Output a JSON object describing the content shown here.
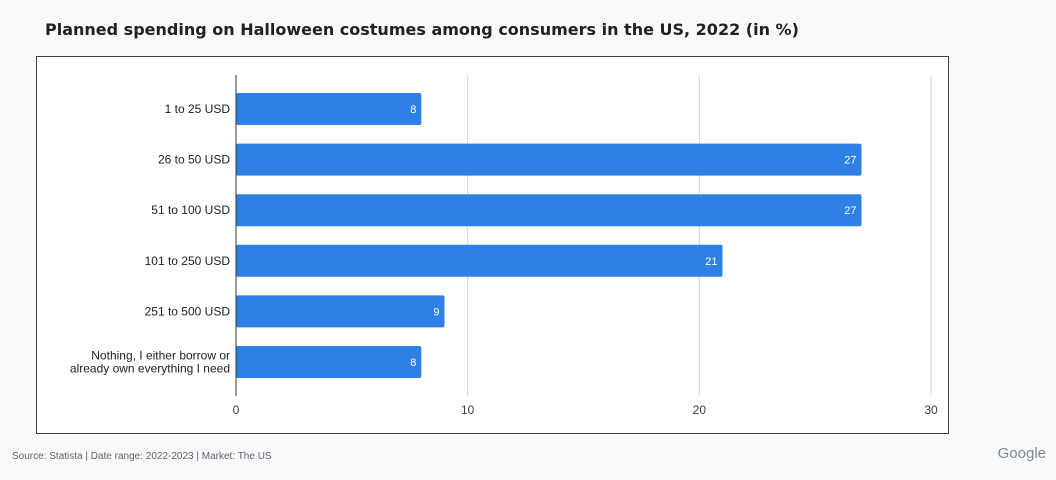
{
  "header": {
    "title": "Planned spending on Halloween costumes among consumers in the US, 2022 (in %)"
  },
  "footer": {
    "source": "Source: Statista | Date range: 2022-2023 | Market: The US",
    "brand": "Google"
  },
  "chart_data": {
    "type": "bar",
    "orientation": "horizontal",
    "title": "Planned spending on Halloween costumes among consumers in the US, 2022 (in %)",
    "xlabel": "",
    "ylabel": "",
    "categories": [
      "1 to 25 USD",
      "26 to 50 USD",
      "51 to 100 USD",
      "101 to 250 USD",
      "251 to 500 USD",
      "Nothing, I either borrow or already own everything I need"
    ],
    "category_lines": [
      [
        "1 to 25 USD"
      ],
      [
        "26 to 50 USD"
      ],
      [
        "51 to 100 USD"
      ],
      [
        "101 to 250 USD"
      ],
      [
        "251 to 500 USD"
      ],
      [
        "Nothing, I either borrow or",
        "already own everything I need"
      ]
    ],
    "values": [
      8,
      27,
      27,
      21,
      9,
      8
    ],
    "xlim": [
      0,
      30
    ],
    "xticks": [
      0,
      10,
      20,
      30
    ],
    "grid": true,
    "bar_color": "#2f80e4",
    "value_label_color": "#ffffff"
  }
}
